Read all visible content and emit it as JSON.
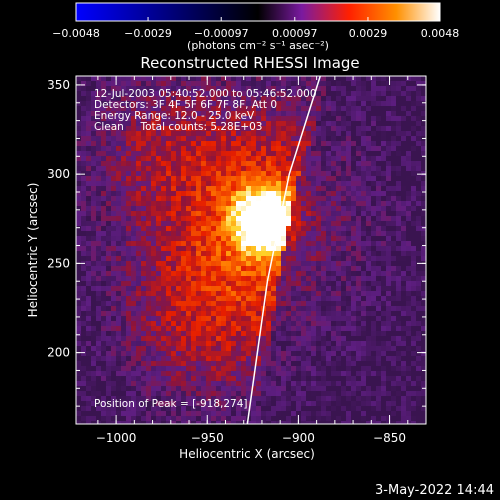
{
  "chart_data": {
    "type": "heatmap",
    "title": "Reconstructed RHESSI Image",
    "xlabel": "Heliocentric X (arcsec)",
    "ylabel": "Heliocentric Y (arcsec)",
    "xlim": [
      -1022,
      -830
    ],
    "ylim": [
      160,
      355
    ],
    "x_ticks": [
      {
        "value": -1000,
        "label": "−1000"
      },
      {
        "value": -950,
        "label": "−950"
      },
      {
        "value": -900,
        "label": "−900"
      },
      {
        "value": -850,
        "label": "−850"
      }
    ],
    "y_ticks": [
      {
        "value": 200,
        "label": "200"
      },
      {
        "value": 250,
        "label": "250"
      },
      {
        "value": 300,
        "label": "300"
      },
      {
        "value": 350,
        "label": "350"
      }
    ],
    "colorbar": {
      "min": -0.0048,
      "max": 0.0048,
      "ticks": [
        {
          "value": -0.0048,
          "label": "−0.0048"
        },
        {
          "value": -0.0029,
          "label": "−0.0029"
        },
        {
          "value": -0.00097,
          "label": "−0.00097"
        },
        {
          "value": 0.00097,
          "label": "0.00097"
        },
        {
          "value": 0.0029,
          "label": "0.0029"
        },
        {
          "value": 0.0048,
          "label": "0.0048"
        }
      ],
      "unit_label": "(photons cm⁻² s⁻¹ asec⁻²)",
      "colors": [
        "#0000ff",
        "#000000",
        "#7a1aa0",
        "#ff2000",
        "#ff9000",
        "#ffffff"
      ]
    },
    "info_lines": [
      "12-Jul-2003 05:40:52.000 to 05:46:52.000",
      "Detectors: 3F 4F 5F 6F 7F 8F, Att 0",
      "Energy Range: 12.0 - 25.0 keV",
      "Clean     Total counts: 5.28E+03"
    ],
    "peak_label": "Position of Peak = [-918,274]",
    "peak": {
      "x": -918,
      "y": 274
    },
    "limb": [
      {
        "x": -928,
        "y": 160
      },
      {
        "x": -917,
        "y": 240
      },
      {
        "x": -905,
        "y": 300
      },
      {
        "x": -888,
        "y": 355
      }
    ]
  },
  "footer": {
    "date": "3-May-2022 14:44"
  }
}
